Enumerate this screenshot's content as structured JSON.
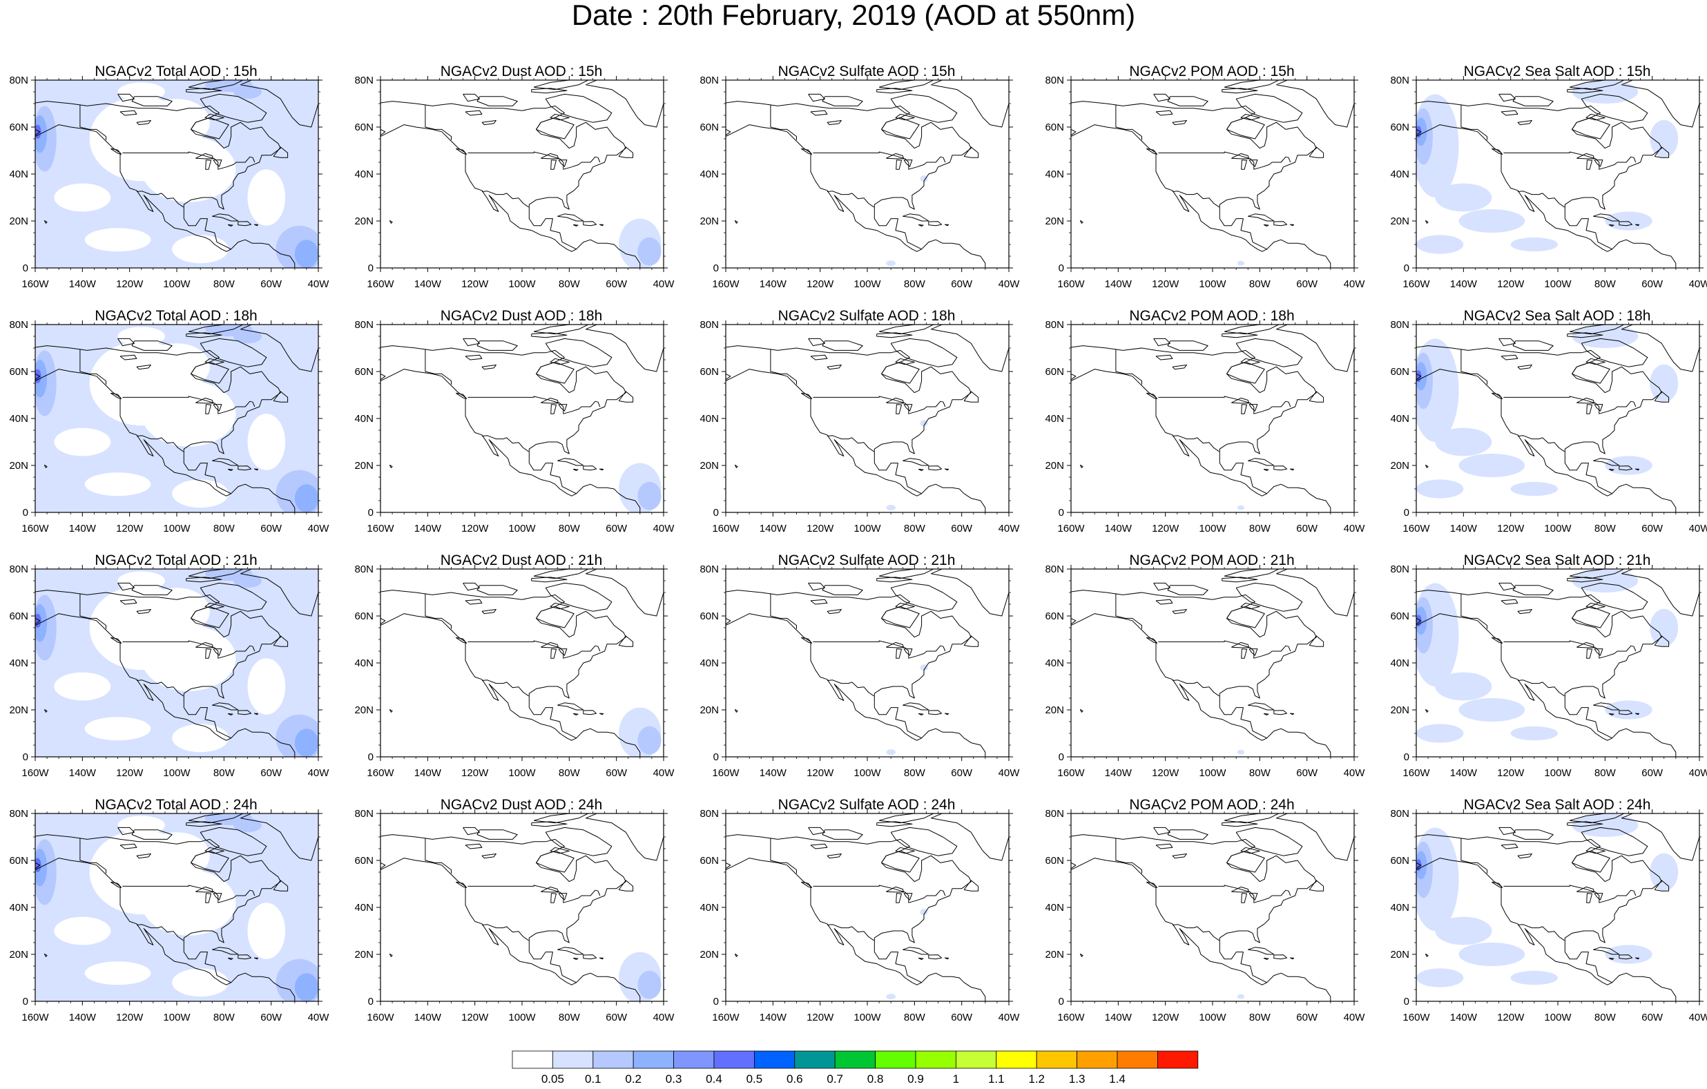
{
  "title": "Date : 20th February, 2019 (AOD at 550nm)",
  "panel_titles": [
    [
      "NGACv2 Total AOD : 15h",
      "NGACv2 Dust AOD : 15h",
      "NGACv2 Sulfate AOD : 15h",
      "NGACv2 POM AOD : 15h",
      "NGACv2 Sea Salt AOD : 15h"
    ],
    [
      "NGACv2 Total AOD : 18h",
      "NGACv2 Dust AOD : 18h",
      "NGACv2 Sulfate AOD : 18h",
      "NGACv2 POM AOD : 18h",
      "NGACv2 Sea Salt AOD : 18h"
    ],
    [
      "NGACv2 Total AOD : 21h",
      "NGACv2 Dust AOD : 21h",
      "NGACv2 Sulfate AOD : 21h",
      "NGACv2 POM AOD : 21h",
      "NGACv2 Sea Salt AOD : 21h"
    ],
    [
      "NGACv2 Total AOD : 24h",
      "NGACv2 Dust AOD : 24h",
      "NGACv2 Sulfate AOD : 24h",
      "NGACv2 POM AOD : 24h",
      "NGACv2 Sea Salt  AOD : 24h"
    ]
  ],
  "lat_ticks": [
    "80N",
    "60N",
    "40N",
    "20N",
    "0"
  ],
  "lon_ticks": [
    "160W",
    "140W",
    "120W",
    "100W",
    "80W",
    "60W",
    "40W"
  ],
  "colorbar": {
    "labels": [
      "0.05",
      "0.1",
      "0.2",
      "0.3",
      "0.4",
      "0.5",
      "0.6",
      "0.7",
      "0.8",
      "0.9",
      "1",
      "1.1",
      "1.2",
      "1.3",
      "1.4"
    ],
    "colors": [
      "#ffffff",
      "#d6e2ff",
      "#b5c9ff",
      "#8eb2ff",
      "#7f96ff",
      "#6370ff",
      "#0063ff",
      "#009696",
      "#00c633",
      "#63ff00",
      "#96ff00",
      "#c6ff33",
      "#ffff00",
      "#ffc600",
      "#ffa000",
      "#ff7c00",
      "#ff1900"
    ]
  }
}
